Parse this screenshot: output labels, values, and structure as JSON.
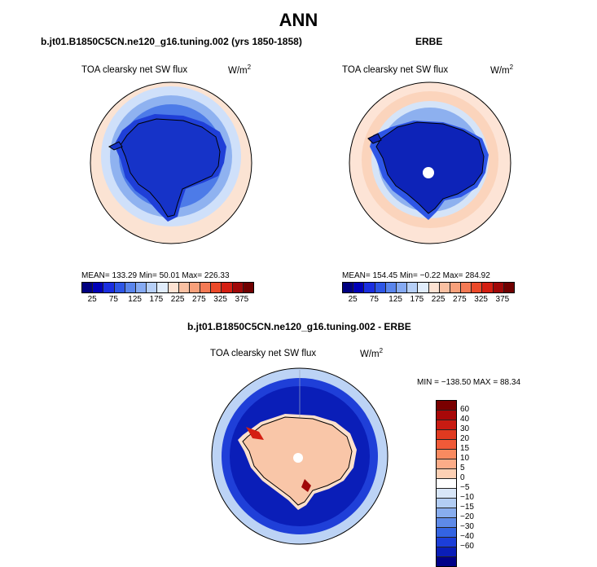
{
  "main_title": "ANN",
  "panels": [
    {
      "title": "b.jt01.B1850C5CN.ne120_g16.tuning.002 (yrs 1850-1858)",
      "var_label": "TOA clearsky net SW flux",
      "units": "W/m",
      "units_exp": "2",
      "stats": "MEAN= 133.29   Min=   50.01   Max= 226.33"
    },
    {
      "title": "ERBE",
      "var_label": "TOA clearsky net SW flux",
      "units": "W/m",
      "units_exp": "2",
      "stats": "MEAN= 154.45   Min=   −0.22   Max= 284.92"
    },
    {
      "title": "b.jt01.B1850C5CN.ne120_g16.tuning.002 - ERBE",
      "var_label": "TOA clearsky net SW flux",
      "units": "W/m",
      "units_exp": "2",
      "stats": "MIN = −138.50  MAX =  88.34"
    }
  ],
  "colorbar_abs": {
    "colors": [
      "#000080",
      "#0000b8",
      "#1a2ee0",
      "#2e56e6",
      "#5a85ec",
      "#86aaf2",
      "#b6cff7",
      "#e0ecfb",
      "#fde2d2",
      "#f9c0a2",
      "#f7a07b",
      "#f47a55",
      "#ec4a2a",
      "#d41f12",
      "#a00808",
      "#700000"
    ],
    "ticks": [
      "25",
      "75",
      "125",
      "175",
      "225",
      "275",
      "325",
      "375"
    ]
  },
  "colorbar_diff": {
    "colors": [
      "#7a0000",
      "#a80808",
      "#c81b12",
      "#e03a20",
      "#f05a38",
      "#f98a60",
      "#fcac88",
      "#fdd0b4",
      "#ffffff",
      "#d8e6f8",
      "#b2cdf4",
      "#88adee",
      "#5e8ae8",
      "#3464e2",
      "#1c3ed8",
      "#0a1eb8",
      "#000088"
    ],
    "ticks": [
      "60",
      "40",
      "30",
      "20",
      "15",
      "10",
      "5",
      "0",
      "−5",
      "−10",
      "−15",
      "−20",
      "−30",
      "−40",
      "−60"
    ]
  }
}
